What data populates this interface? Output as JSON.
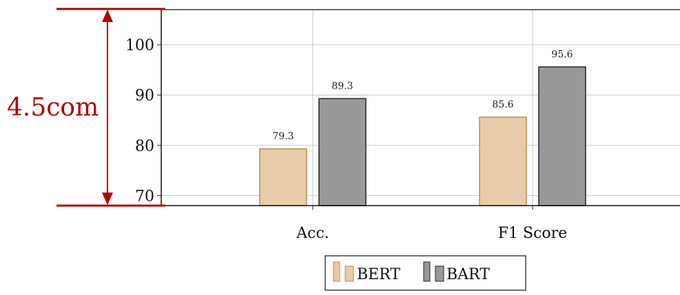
{
  "chart_data": {
    "type": "bar",
    "title": "",
    "xlabel": "",
    "ylabel": "",
    "categories": [
      "Acc.",
      "F1 Score"
    ],
    "series": [
      {
        "name": "BERT",
        "values": [
          79.3,
          85.6
        ],
        "fill": "#e8cba8",
        "stroke": "#c08a4a"
      },
      {
        "name": "BART",
        "values": [
          89.3,
          95.6
        ],
        "fill": "#999999",
        "stroke": "#222222"
      }
    ],
    "ylim": [
      68,
      107
    ],
    "yticks": [
      70,
      80,
      90,
      100
    ],
    "grid": true,
    "legend_position": "bottom-center",
    "annotation": {
      "text": "4.5com",
      "color": "#b30000"
    }
  }
}
